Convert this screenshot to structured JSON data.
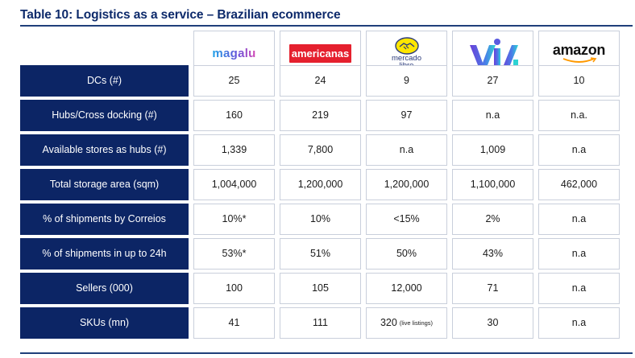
{
  "title": "Table 10: Logistics as a service – Brazilian ecommerce",
  "companies": [
    {
      "name": "magalu",
      "logo_icon": "magalu-logo"
    },
    {
      "name": "americanas",
      "logo_icon": "americanas-logo"
    },
    {
      "name": "mercado libre",
      "logo_icon": "mercado-libre-logo",
      "line1": "mercado",
      "line2": "libre"
    },
    {
      "name": "via",
      "logo_icon": "via-logo"
    },
    {
      "name": "amazon",
      "logo_icon": "amazon-logo"
    }
  ],
  "rows": [
    {
      "label": "DCs (#)",
      "values": [
        "25",
        "24",
        "9",
        "27",
        "10"
      ]
    },
    {
      "label": "Hubs/Cross docking (#)",
      "values": [
        "160",
        "219",
        "97",
        "n.a",
        "n.a."
      ]
    },
    {
      "label": "Available stores as hubs (#)",
      "values": [
        "1,339",
        "7,800",
        "n.a",
        "1,009",
        "n.a"
      ]
    },
    {
      "label": "Total storage area (sqm)",
      "values": [
        "1,004,000",
        "1,200,000",
        "1,200,000",
        "1,100,000",
        "462,000"
      ]
    },
    {
      "label": "% of shipments by Correios",
      "values": [
        "10%*",
        "10%",
        "<15%",
        "2%",
        "n.a"
      ]
    },
    {
      "label": "% of shipments in up to 24h",
      "values": [
        "53%*",
        "51%",
        "50%",
        "43%",
        "n.a"
      ]
    },
    {
      "label": "Sellers (000)",
      "values": [
        "100",
        "105",
        "12,000",
        "71",
        "n.a"
      ]
    },
    {
      "label": "SKUs (mn)",
      "values": [
        "41",
        "111",
        "320",
        "30",
        "n.a"
      ]
    }
  ],
  "skus_note": "(live listings)",
  "colors": {
    "header_bg": "#0c2565",
    "title": "#0d2a6b",
    "border": "#c9cfdb",
    "americanas_red": "#e5202e",
    "mercado_yellow": "#ffe600"
  }
}
